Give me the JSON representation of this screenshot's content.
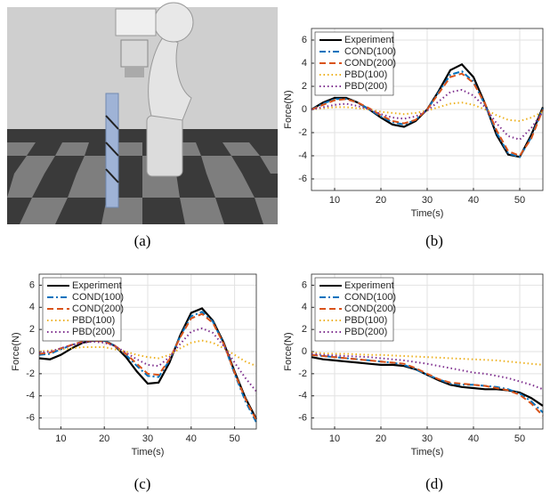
{
  "captions": [
    "(a)",
    "(b)",
    "(c)",
    "(d)"
  ],
  "chart_data": [
    {
      "type": "line",
      "xlabel": "Time(s)",
      "ylabel": "Force(N)",
      "x": [
        5,
        7.5,
        10,
        12.5,
        15,
        17.5,
        20,
        22.5,
        25,
        27.5,
        30,
        32.5,
        35,
        37.5,
        40,
        42.5,
        45,
        47.5,
        50,
        52.5,
        55
      ],
      "xlim": [
        5,
        55
      ],
      "xticks": [
        10,
        20,
        30,
        40,
        50
      ],
      "ylim": [
        -7,
        7
      ],
      "yticks": [
        -6,
        -4,
        -2,
        0,
        2,
        4,
        6
      ],
      "grid": true,
      "legend": "upper-left",
      "series": [
        {
          "name": "Experiment",
          "color": "#000000",
          "style": "solid",
          "values": [
            0,
            0.6,
            1.0,
            1.0,
            0.6,
            0,
            -0.7,
            -1.3,
            -1.5,
            -1.0,
            0,
            1.6,
            3.4,
            3.9,
            2.8,
            0.5,
            -2.2,
            -3.9,
            -4.1,
            -2.2,
            0.2
          ]
        },
        {
          "name": "COND(100)",
          "color": "#0072BD",
          "style": "dashdot",
          "values": [
            0,
            0.5,
            0.9,
            0.9,
            0.6,
            0,
            -0.6,
            -1.1,
            -1.3,
            -0.9,
            0,
            1.5,
            3.0,
            3.3,
            2.4,
            0.4,
            -2.0,
            -3.8,
            -4.1,
            -2.4,
            0.1
          ]
        },
        {
          "name": "COND(200)",
          "color": "#D95319",
          "style": "dashed",
          "values": [
            0,
            0.4,
            0.8,
            0.9,
            0.6,
            0.1,
            -0.5,
            -1.0,
            -1.2,
            -0.9,
            0,
            1.4,
            2.8,
            3.1,
            2.3,
            0.5,
            -1.8,
            -3.6,
            -4.0,
            -2.5,
            0
          ]
        },
        {
          "name": "PBD(100)",
          "color": "#EDB120",
          "style": "dotted",
          "values": [
            0,
            0.1,
            0.2,
            0.2,
            0.1,
            0,
            -0.2,
            -0.3,
            -0.4,
            -0.3,
            -0.1,
            0.2,
            0.5,
            0.6,
            0.4,
            0,
            -0.5,
            -0.9,
            -1.0,
            -0.7,
            -0.2
          ]
        },
        {
          "name": "PBD(200)",
          "color": "#7E2F8E",
          "style": "dotted",
          "values": [
            0,
            0.2,
            0.4,
            0.5,
            0.3,
            0,
            -0.4,
            -0.7,
            -0.8,
            -0.6,
            -0.1,
            0.7,
            1.5,
            1.7,
            1.2,
            0.2,
            -1.2,
            -2.3,
            -2.6,
            -1.6,
            -0.2
          ]
        }
      ]
    },
    {
      "type": "line",
      "xlabel": "Time(s)",
      "ylabel": "Force(N)",
      "x": [
        5,
        7.5,
        10,
        12.5,
        15,
        17.5,
        20,
        22.5,
        25,
        27.5,
        30,
        32.5,
        35,
        37.5,
        40,
        42.5,
        45,
        47.5,
        50,
        52.5,
        55
      ],
      "xlim": [
        5,
        55
      ],
      "xticks": [
        10,
        20,
        30,
        40,
        50
      ],
      "ylim": [
        -7,
        7
      ],
      "yticks": [
        -6,
        -4,
        -2,
        0,
        2,
        4,
        6
      ],
      "grid": true,
      "legend": "upper-left",
      "series": [
        {
          "name": "Experiment",
          "color": "#000000",
          "style": "solid",
          "values": [
            -0.6,
            -0.7,
            -0.3,
            0.3,
            0.8,
            1.0,
            1.0,
            0.5,
            -0.5,
            -1.8,
            -2.9,
            -2.8,
            -1.0,
            1.5,
            3.5,
            3.9,
            2.8,
            0.8,
            -1.8,
            -4.2,
            -6.1
          ]
        },
        {
          "name": "COND(100)",
          "color": "#0072BD",
          "style": "dashdot",
          "values": [
            -0.3,
            -0.2,
            0.2,
            0.6,
            0.9,
            1.1,
            1.0,
            0.5,
            -0.3,
            -1.3,
            -2.2,
            -2.3,
            -0.8,
            1.4,
            3.2,
            3.6,
            2.7,
            0.7,
            -2.0,
            -4.5,
            -6.4
          ]
        },
        {
          "name": "COND(200)",
          "color": "#D95319",
          "style": "dashed",
          "values": [
            -0.2,
            -0.1,
            0.3,
            0.6,
            0.9,
            1.0,
            0.9,
            0.5,
            -0.2,
            -1.1,
            -2.0,
            -2.1,
            -0.7,
            1.3,
            3.0,
            3.4,
            2.6,
            0.7,
            -1.9,
            -4.3,
            -6.2
          ]
        },
        {
          "name": "PBD(100)",
          "color": "#EDB120",
          "style": "dotted",
          "values": [
            0,
            0.1,
            0.2,
            0.3,
            0.4,
            0.4,
            0.4,
            0.2,
            0,
            -0.3,
            -0.5,
            -0.6,
            -0.3,
            0.3,
            0.8,
            1.0,
            0.8,
            0.3,
            -0.3,
            -0.9,
            -1.3
          ]
        },
        {
          "name": "PBD(200)",
          "color": "#7E2F8E",
          "style": "dotted",
          "values": [
            -0.1,
            0,
            0.3,
            0.6,
            0.8,
            0.9,
            0.8,
            0.5,
            -0.1,
            -0.7,
            -1.2,
            -1.3,
            -0.5,
            0.7,
            1.8,
            2.1,
            1.7,
            0.5,
            -1.0,
            -2.4,
            -3.6
          ]
        }
      ]
    },
    {
      "type": "line",
      "xlabel": "Time(s)",
      "ylabel": "Force(N)",
      "x": [
        5,
        7.5,
        10,
        12.5,
        15,
        17.5,
        20,
        22.5,
        25,
        27.5,
        30,
        32.5,
        35,
        37.5,
        40,
        42.5,
        45,
        47.5,
        50,
        52.5,
        55
      ],
      "xlim": [
        5,
        55
      ],
      "xticks": [
        10,
        20,
        30,
        40,
        50
      ],
      "ylim": [
        -7,
        7
      ],
      "yticks": [
        -6,
        -4,
        -2,
        0,
        2,
        4,
        6
      ],
      "grid": true,
      "legend": "upper-right",
      "series": [
        {
          "name": "Experiment",
          "color": "#000000",
          "style": "solid",
          "values": [
            -0.5,
            -0.7,
            -0.8,
            -0.9,
            -1.0,
            -1.1,
            -1.2,
            -1.2,
            -1.3,
            -1.6,
            -2.1,
            -2.6,
            -3.0,
            -3.2,
            -3.3,
            -3.4,
            -3.4,
            -3.5,
            -3.7,
            -4.2,
            -4.9
          ]
        },
        {
          "name": "COND(100)",
          "color": "#0072BD",
          "style": "dashdot",
          "values": [
            -0.3,
            -0.4,
            -0.5,
            -0.6,
            -0.7,
            -0.8,
            -0.9,
            -1.0,
            -1.2,
            -1.6,
            -2.1,
            -2.5,
            -2.9,
            -3.0,
            -3.0,
            -3.1,
            -3.2,
            -3.4,
            -3.8,
            -4.5,
            -5.5
          ]
        },
        {
          "name": "COND(200)",
          "color": "#D95319",
          "style": "dashed",
          "values": [
            -0.3,
            -0.4,
            -0.5,
            -0.6,
            -0.7,
            -0.8,
            -0.9,
            -1.0,
            -1.1,
            -1.5,
            -2.0,
            -2.5,
            -2.8,
            -2.9,
            -3.0,
            -3.1,
            -3.3,
            -3.5,
            -3.9,
            -4.7,
            -5.8
          ]
        },
        {
          "name": "PBD(100)",
          "color": "#EDB120",
          "style": "dotted",
          "values": [
            -0.1,
            -0.15,
            -0.2,
            -0.2,
            -0.25,
            -0.3,
            -0.3,
            -0.35,
            -0.4,
            -0.45,
            -0.5,
            -0.55,
            -0.6,
            -0.65,
            -0.7,
            -0.75,
            -0.8,
            -0.9,
            -1.0,
            -1.1,
            -1.2
          ]
        },
        {
          "name": "PBD(200)",
          "color": "#7E2F8E",
          "style": "dotted",
          "values": [
            -0.2,
            -0.3,
            -0.35,
            -0.4,
            -0.45,
            -0.5,
            -0.6,
            -0.7,
            -0.8,
            -0.95,
            -1.1,
            -1.3,
            -1.5,
            -1.7,
            -1.9,
            -2.0,
            -2.2,
            -2.4,
            -2.7,
            -3.0,
            -3.4
          ]
        }
      ]
    }
  ]
}
